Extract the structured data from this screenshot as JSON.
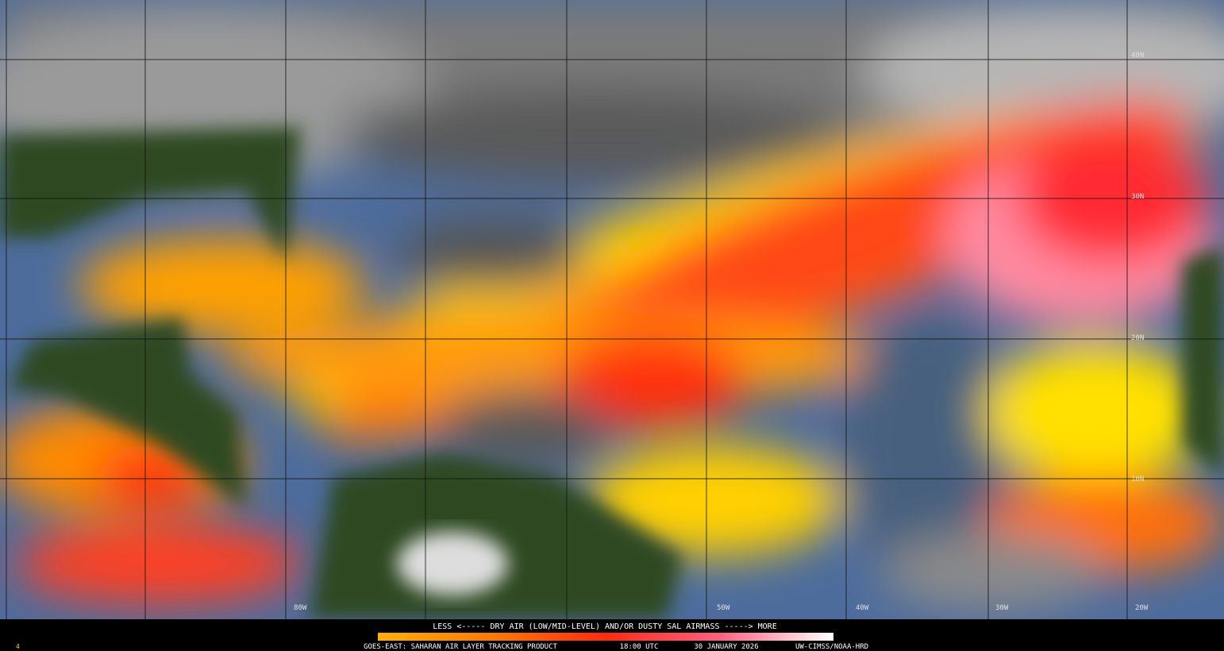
{
  "map": {
    "legend_caption": "LESS <----- DRY AIR (LOW/MID-LEVEL) AND/OR DUSTY SAL AIRMASS -----> MORE",
    "product": "GOES-EAST: SAHARAN AIR LAYER TRACKING PRODUCT",
    "time": "18:00 UTC",
    "date": "30 JANUARY 2026",
    "credit": "UW-CIMSS/NOAA-HRD",
    "corner": "4",
    "lat_labels": [
      "40N",
      "30N",
      "20N",
      "10N"
    ],
    "lon_labels": [
      "80W",
      "50W",
      "40W",
      "30W",
      "20W"
    ]
  }
}
